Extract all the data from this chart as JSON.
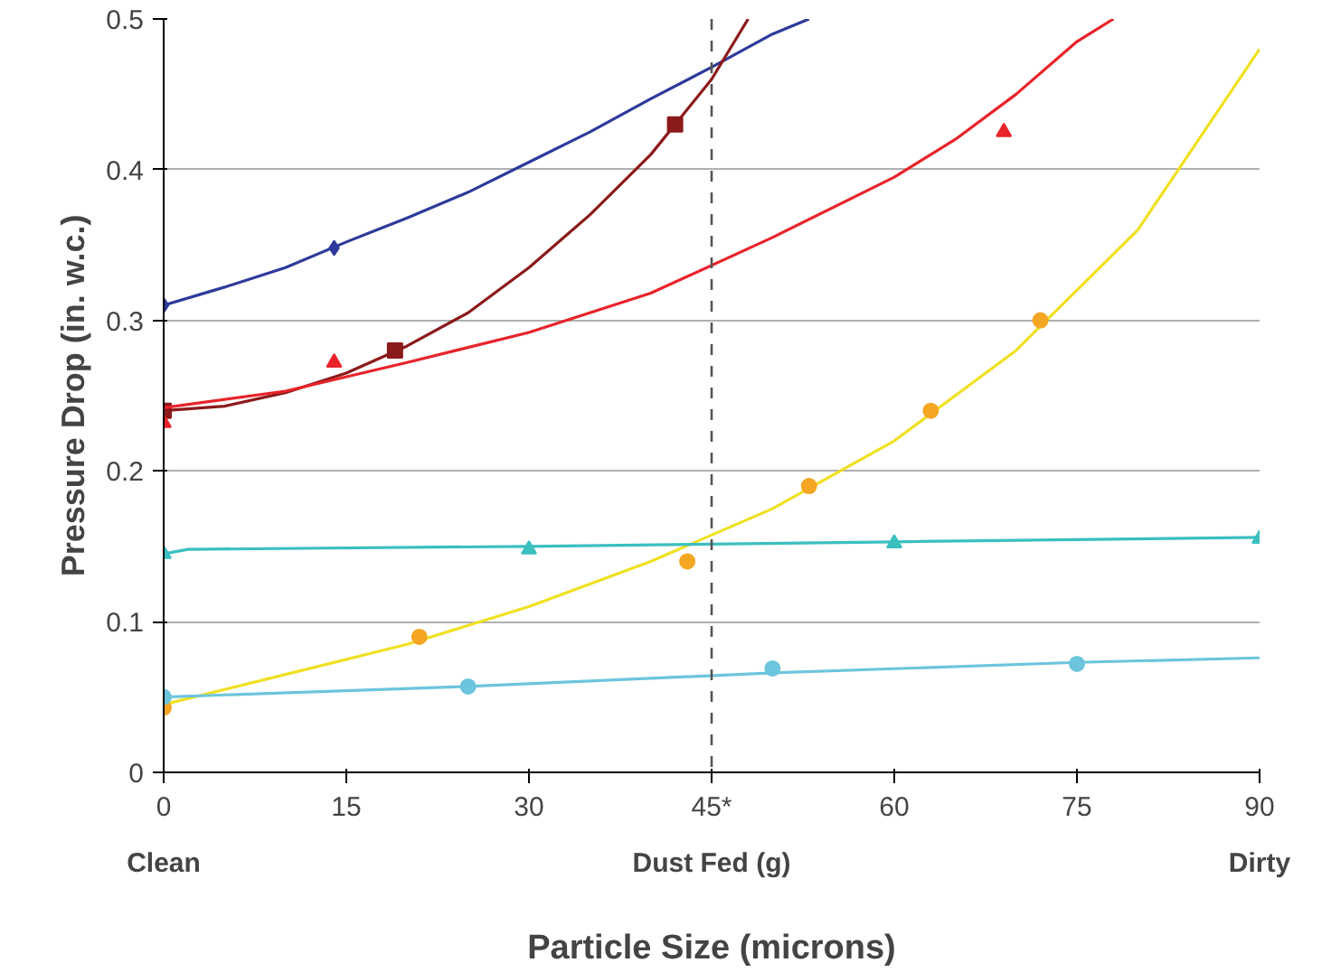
{
  "chart_data": {
    "type": "line",
    "xlabel": "Dust Fed (g)",
    "ylabel": "Pressure Drop (in. w.c.)",
    "annotations": [
      "Clean",
      "Dirty",
      "Particle Size (microns)"
    ],
    "xlim": [
      0,
      90
    ],
    "ylim": [
      0,
      0.5
    ],
    "xticks": [
      0,
      15,
      30,
      {
        "value": 45,
        "label": "45*"
      },
      60,
      75,
      90
    ],
    "yticks": [
      0,
      0.1,
      0.2,
      0.3,
      0.4,
      0.5
    ],
    "grid": "y",
    "line_style": "solid",
    "ref_lines": [
      {
        "axis": "x",
        "value": 45,
        "color": "#555555",
        "line_style": "dashed"
      }
    ],
    "series": [
      {
        "color": "#2e3a9a",
        "x": [
          0,
          5,
          10,
          15,
          20,
          25,
          30,
          35,
          40,
          45,
          50,
          53
        ],
        "values": [
          0.31,
          0.322,
          0.335,
          0.352,
          0.368,
          0.385,
          0.405,
          0.425,
          0.447,
          0.468,
          0.49,
          0.5
        ]
      },
      {
        "type": "scatter",
        "marker": "diamond",
        "color": "#2e3a9a",
        "x": [
          0,
          14
        ],
        "values": [
          0.31,
          0.348
        ]
      },
      {
        "color": "#8b1a1a",
        "x": [
          0,
          5,
          10,
          15,
          20,
          25,
          30,
          35,
          40,
          45,
          48
        ],
        "values": [
          0.24,
          0.243,
          0.252,
          0.265,
          0.283,
          0.305,
          0.335,
          0.37,
          0.41,
          0.46,
          0.5
        ]
      },
      {
        "type": "scatter",
        "marker": "square",
        "color": "#8b1a1a",
        "x": [
          0,
          19,
          42
        ],
        "values": [
          0.24,
          0.28,
          0.43
        ]
      },
      {
        "color": "#e8232a",
        "x": [
          0,
          10,
          20,
          30,
          40,
          50,
          60,
          65,
          70,
          75,
          78
        ],
        "values": [
          0.242,
          0.253,
          0.272,
          0.292,
          0.318,
          0.355,
          0.395,
          0.42,
          0.45,
          0.485,
          0.5
        ]
      },
      {
        "type": "scatter",
        "marker": "triangle",
        "color": "#e8232a",
        "x": [
          0,
          14,
          69
        ],
        "values": [
          0.232,
          0.272,
          0.425
        ]
      },
      {
        "color": "#f0e020",
        "x": [
          0,
          10,
          20,
          30,
          40,
          50,
          60,
          70,
          80,
          90
        ],
        "values": [
          0.045,
          0.065,
          0.085,
          0.11,
          0.14,
          0.175,
          0.22,
          0.28,
          0.36,
          0.48
        ]
      },
      {
        "type": "scatter",
        "marker": "circle",
        "color": "#f5a623",
        "x": [
          0,
          21,
          43,
          53,
          63,
          72
        ],
        "values": [
          0.043,
          0.09,
          0.14,
          0.19,
          0.24,
          0.3
        ]
      },
      {
        "color": "#3bbfbf",
        "x": [
          0,
          2,
          30,
          60,
          90
        ],
        "values": [
          0.145,
          0.148,
          0.15,
          0.153,
          0.156
        ]
      },
      {
        "type": "scatter",
        "marker": "triangle",
        "color": "#3bbfbf",
        "x": [
          0,
          30,
          60,
          90
        ],
        "values": [
          0.145,
          0.148,
          0.152,
          0.155
        ]
      },
      {
        "color": "#6cc5dc",
        "x": [
          0,
          25,
          50,
          75,
          90
        ],
        "values": [
          0.05,
          0.057,
          0.066,
          0.073,
          0.076
        ]
      },
      {
        "type": "scatter",
        "marker": "circle",
        "color": "#6cc5dc",
        "x": [
          0,
          25,
          50,
          75
        ],
        "values": [
          0.05,
          0.057,
          0.069,
          0.072
        ]
      }
    ]
  }
}
